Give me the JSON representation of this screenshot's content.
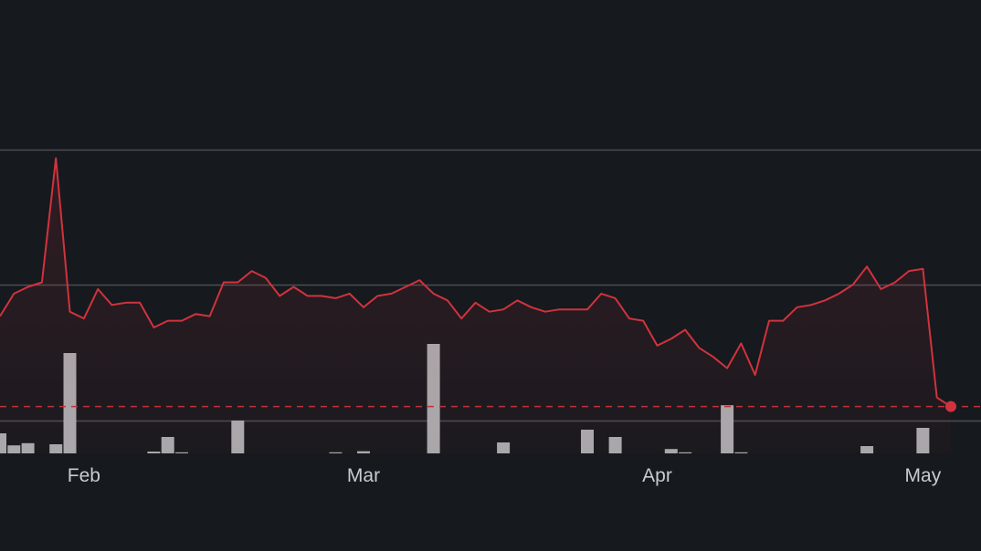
{
  "chart_data": {
    "type": "line",
    "title": "",
    "xlabel": "",
    "ylabel": "",
    "colors": {
      "background": "#16191e",
      "line": "#d0333d",
      "volume": "#a9abae",
      "grid": "#4a4d52",
      "dashed": "#c0323a"
    },
    "x_ticks": [
      {
        "label": "Feb",
        "index": 6
      },
      {
        "label": "Mar",
        "index": 26
      },
      {
        "label": "Apr",
        "index": 47
      },
      {
        "label": "May",
        "index": 66
      }
    ],
    "price_ylim": [
      0,
      100
    ],
    "grid_levels": [
      90,
      60,
      30
    ],
    "current_value": 33,
    "price": [
      53,
      58,
      59.5,
      60.5,
      88,
      54,
      52.5,
      59,
      55.5,
      56,
      56,
      50.5,
      52,
      52,
      53.5,
      53,
      60.5,
      60.5,
      63,
      61.5,
      57.5,
      59.5,
      57.5,
      57.5,
      57,
      58,
      55,
      57.5,
      58,
      59.5,
      61,
      58,
      56.5,
      52.5,
      56,
      54,
      54.5,
      56.5,
      55,
      54,
      54.5,
      54.5,
      54.5,
      58,
      57,
      52.5,
      52,
      46.5,
      48,
      50,
      46,
      44,
      41.5,
      47,
      40,
      52,
      52,
      55,
      55.5,
      56.5,
      58,
      60,
      64,
      59,
      60.5,
      63,
      63.5,
      35,
      33
    ],
    "volume_ylim": [
      0,
      30
    ],
    "volume": [
      5.5,
      2.2,
      2.8,
      0,
      2.5,
      27.5,
      0,
      0,
      0,
      0,
      0,
      0.5,
      4.5,
      0.3,
      0,
      0,
      0,
      9,
      0,
      0,
      0,
      0,
      0,
      0,
      0.3,
      0,
      0.6,
      0,
      0,
      0,
      0,
      30,
      0,
      0,
      0,
      0,
      3,
      0,
      0,
      0,
      0,
      0,
      6.5,
      0,
      4.5,
      0,
      0,
      0,
      1.2,
      0.3,
      0,
      0,
      13.2,
      0.3,
      0,
      0,
      0,
      0,
      0,
      0,
      0,
      0,
      2,
      0,
      0,
      0,
      7,
      0,
      0
    ]
  }
}
